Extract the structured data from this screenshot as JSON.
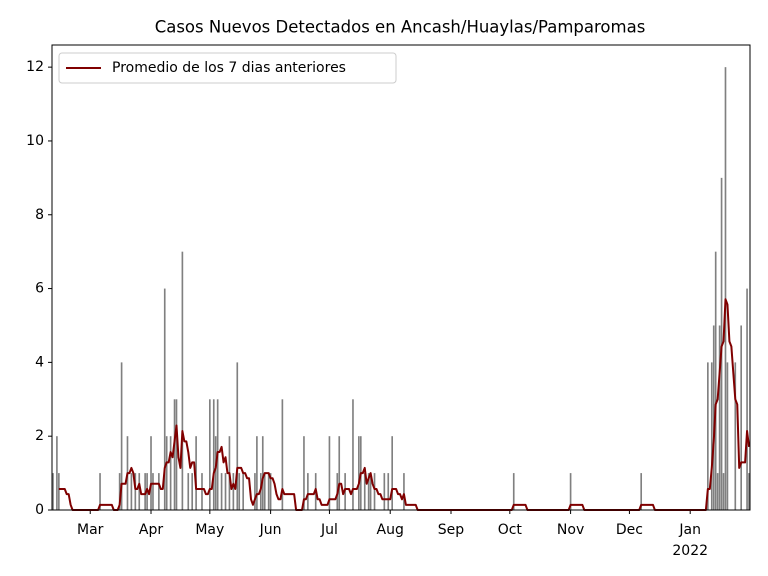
{
  "chart_data": {
    "type": "bar_line",
    "title": "Casos Nuevos Detectados en Ancash/Huaylas/Pamparomas",
    "categories": [
      null,
      null,
      null,
      null,
      null,
      null,
      null,
      null,
      null,
      null,
      null,
      null,
      null,
      null,
      null,
      null,
      null,
      null,
      null,
      "Mar",
      null,
      null,
      null,
      null,
      null,
      null,
      null,
      null,
      null,
      null,
      null,
      null,
      null,
      null,
      null,
      null,
      null,
      null,
      null,
      null,
      null,
      null,
      null,
      null,
      null,
      null,
      null,
      null,
      null,
      null,
      "Apr",
      null,
      null,
      null,
      null,
      null,
      null,
      null,
      null,
      null,
      null,
      null,
      null,
      null,
      null,
      null,
      null,
      null,
      null,
      null,
      null,
      null,
      null,
      null,
      null,
      null,
      null,
      null,
      null,
      null,
      "May",
      null,
      null,
      null,
      null,
      null,
      null,
      null,
      null,
      null,
      null,
      null,
      null,
      null,
      null,
      null,
      null,
      null,
      null,
      null,
      null,
      null,
      null,
      null,
      null,
      null,
      null,
      null,
      null,
      null,
      null,
      "Jun",
      null,
      null,
      null,
      null,
      null,
      null,
      null,
      null,
      null,
      null,
      null,
      null,
      null,
      null,
      null,
      null,
      null,
      null,
      null,
      null,
      null,
      null,
      null,
      null,
      null,
      null,
      null,
      null,
      null,
      "Jul",
      null,
      null,
      null,
      null,
      null,
      null,
      null,
      null,
      null,
      null,
      null,
      null,
      null,
      null,
      null,
      null,
      null,
      null,
      null,
      null,
      null,
      null,
      null,
      null,
      null,
      null,
      null,
      null,
      null,
      null,
      "Aug",
      null,
      null,
      null,
      null,
      null,
      null,
      null,
      null,
      null,
      null,
      null,
      null,
      null,
      null,
      null,
      null,
      null,
      null,
      null,
      null,
      null,
      null,
      null,
      null,
      null,
      null,
      null,
      null,
      null,
      null,
      "Sep",
      null,
      null,
      null,
      null,
      null,
      null,
      null,
      null,
      null,
      null,
      null,
      null,
      null,
      null,
      null,
      null,
      null,
      null,
      null,
      null,
      null,
      null,
      null,
      null,
      null,
      null,
      null,
      null,
      null,
      "Oct",
      null,
      null,
      null,
      null,
      null,
      null,
      null,
      null,
      null,
      null,
      null,
      null,
      null,
      null,
      null,
      null,
      null,
      null,
      null,
      null,
      null,
      null,
      null,
      null,
      null,
      null,
      null,
      null,
      null,
      null,
      "Nov",
      null,
      null,
      null,
      null,
      null,
      null,
      null,
      null,
      null,
      null,
      null,
      null,
      null,
      null,
      null,
      null,
      null,
      null,
      null,
      null,
      null,
      null,
      null,
      null,
      null,
      null,
      null,
      null,
      null,
      "Dec",
      null,
      null,
      null,
      null,
      null,
      null,
      null,
      null,
      null,
      null,
      null,
      null,
      null,
      null,
      null,
      null,
      null,
      null,
      null,
      null,
      null,
      null,
      null,
      null,
      null,
      null,
      null,
      null,
      null,
      null,
      "Jan",
      null,
      null,
      null,
      null,
      null,
      null,
      null,
      null,
      null,
      null,
      null,
      null,
      null,
      null,
      null,
      null,
      null,
      null,
      null,
      null,
      null,
      null,
      null,
      null,
      null,
      null,
      null,
      null,
      null,
      null
    ],
    "x_year_label": "2022",
    "series": [
      {
        "color": "#808080",
        "values": [
          1,
          0,
          2,
          1,
          0,
          0,
          0,
          0,
          0,
          0,
          0,
          0,
          0,
          0,
          0,
          0,
          0,
          0,
          0,
          0,
          0,
          0,
          0,
          0,
          1,
          0,
          0,
          0,
          0,
          0,
          0,
          0,
          0,
          0,
          1,
          4,
          0,
          0,
          2,
          0,
          1,
          0,
          1,
          0,
          1,
          0,
          0,
          1,
          1,
          0,
          2,
          1,
          0,
          0,
          1,
          0,
          0,
          6,
          2,
          0,
          2,
          0,
          3,
          3,
          0,
          0,
          7,
          0,
          0,
          1,
          0,
          1,
          0,
          2,
          0,
          0,
          1,
          0,
          0,
          0,
          3,
          0,
          3,
          2,
          3,
          0,
          1,
          0,
          1,
          0,
          2,
          0,
          1,
          0,
          4,
          1,
          0,
          1,
          0,
          0,
          0,
          0,
          0,
          1,
          2,
          0,
          1,
          2,
          1,
          0,
          1,
          1,
          0,
          0,
          0,
          0,
          0,
          3,
          0,
          0,
          0,
          0,
          0,
          0,
          0,
          0,
          0,
          0,
          2,
          0,
          1,
          0,
          0,
          0,
          1,
          0,
          0,
          0,
          0,
          0,
          0,
          2,
          0,
          0,
          0,
          1,
          2,
          0,
          0,
          1,
          0,
          0,
          0,
          3,
          0,
          0,
          2,
          2,
          0,
          1,
          0,
          1,
          1,
          0,
          1,
          0,
          0,
          0,
          0,
          1,
          0,
          1,
          0,
          2,
          0,
          0,
          0,
          0,
          0,
          1,
          0,
          0,
          0,
          0,
          0,
          0,
          0,
          0,
          0,
          0,
          0,
          0,
          0,
          0,
          0,
          0,
          0,
          0,
          0,
          0,
          0,
          0,
          0,
          0,
          0,
          0,
          0,
          0,
          0,
          0,
          0,
          0,
          0,
          0,
          0,
          0,
          0,
          0,
          0,
          0,
          0,
          0,
          0,
          0,
          0,
          0,
          0,
          0,
          0,
          0,
          0,
          0,
          0,
          0,
          0,
          1,
          0,
          0,
          0,
          0,
          0,
          0,
          0,
          0,
          0,
          0,
          0,
          0,
          0,
          0,
          0,
          0,
          0,
          0,
          0,
          0,
          0,
          0,
          0,
          0,
          0,
          0,
          0,
          0,
          1,
          0,
          0,
          0,
          0,
          0,
          0,
          0,
          0,
          0,
          0,
          0,
          0,
          0,
          0,
          0,
          0,
          0,
          0,
          0,
          0,
          0,
          0,
          0,
          0,
          0,
          0,
          0,
          0,
          0,
          0,
          0,
          0,
          0,
          0,
          0,
          1,
          0,
          0,
          0,
          0,
          0,
          0,
          0,
          0,
          0,
          0,
          0,
          0,
          0,
          0,
          0,
          0,
          0,
          0,
          0,
          0,
          0,
          0,
          0,
          0,
          0,
          0,
          0,
          0,
          0,
          0,
          0,
          0,
          0,
          4,
          0,
          4,
          5,
          7,
          1,
          5,
          9,
          1,
          12,
          4,
          0,
          0,
          0,
          4,
          0,
          0,
          5,
          0,
          0,
          6,
          1
        ]
      },
      {
        "name": "Promedio de los 7 dias anteriores",
        "color": "#800000",
        "values": [
          null,
          null,
          null,
          0.57,
          0.57,
          0.57,
          0.57,
          0.43,
          0.43,
          0.14,
          0,
          0,
          0,
          0,
          0,
          0,
          0,
          0,
          0,
          0,
          0,
          0,
          0,
          0,
          0.14,
          0.14,
          0.14,
          0.14,
          0.14,
          0.14,
          0.14,
          0,
          0,
          0,
          0.14,
          0.71,
          0.71,
          0.71,
          1,
          1,
          1.14,
          1,
          0.57,
          0.57,
          0.71,
          0.43,
          0.43,
          0.43,
          0.57,
          0.43,
          0.71,
          0.71,
          0.71,
          0.71,
          0.71,
          0.57,
          0.57,
          1.14,
          1.29,
          1.29,
          1.57,
          1.43,
          1.86,
          2.29,
          1.43,
          1.14,
          2.14,
          1.86,
          1.86,
          1.57,
          1.14,
          1.29,
          1.29,
          0.57,
          0.57,
          0.57,
          0.57,
          0.57,
          0.43,
          0.43,
          0.57,
          0.57,
          1,
          1.14,
          1.57,
          1.57,
          1.71,
          1.29,
          1.43,
          1,
          1,
          0.57,
          0.71,
          0.57,
          1.14,
          1.14,
          1.14,
          1,
          1,
          0.86,
          0.86,
          0.29,
          0.14,
          0.29,
          0.43,
          0.43,
          0.57,
          0.86,
          1,
          1,
          1,
          0.86,
          0.86,
          0.71,
          0.43,
          0.29,
          0.29,
          0.57,
          0.43,
          0.43,
          0.43,
          0.43,
          0.43,
          0.43,
          0,
          0,
          0,
          0,
          0.29,
          0.29,
          0.43,
          0.43,
          0.43,
          0.43,
          0.57,
          0.29,
          0.29,
          0.14,
          0.14,
          0.14,
          0.14,
          0.29,
          0.29,
          0.29,
          0.29,
          0.43,
          0.71,
          0.71,
          0.43,
          0.57,
          0.57,
          0.57,
          0.43,
          0.57,
          0.57,
          0.57,
          0.71,
          1,
          1,
          1.14,
          0.71,
          0.86,
          1,
          0.71,
          0.57,
          0.57,
          0.43,
          0.43,
          0.29,
          0.29,
          0.29,
          0.29,
          0.29,
          0.57,
          0.57,
          0.57,
          0.43,
          0.43,
          0.29,
          0.43,
          0.14,
          0.14,
          0.14,
          0.14,
          0.14,
          0.14,
          0,
          0,
          0,
          0,
          0,
          0,
          0,
          0,
          0,
          0,
          0,
          0,
          0,
          0,
          0,
          0,
          0,
          0,
          0,
          0,
          0,
          0,
          0,
          0,
          0,
          0,
          0,
          0,
          0,
          0,
          0,
          0,
          0,
          0,
          0,
          0,
          0,
          0,
          0,
          0,
          0,
          0,
          0,
          0,
          0,
          0,
          0,
          0,
          0,
          0.14,
          0.14,
          0.14,
          0.14,
          0.14,
          0.14,
          0.14,
          0,
          0,
          0,
          0,
          0,
          0,
          0,
          0,
          0,
          0,
          0,
          0,
          0,
          0,
          0,
          0,
          0,
          0,
          0,
          0,
          0,
          0,
          0.14,
          0.14,
          0.14,
          0.14,
          0.14,
          0.14,
          0.14,
          0,
          0,
          0,
          0,
          0,
          0,
          0,
          0,
          0,
          0,
          0,
          0,
          0,
          0,
          0,
          0,
          0,
          0,
          0,
          0,
          0,
          0,
          0,
          0,
          0,
          0,
          0,
          0,
          0,
          0.14,
          0.14,
          0.14,
          0.14,
          0.14,
          0.14,
          0.14,
          0,
          0,
          0,
          0,
          0,
          0,
          0,
          0,
          0,
          0,
          0,
          0,
          0,
          0,
          0,
          0,
          0,
          0,
          0,
          0,
          0,
          0,
          0,
          0,
          0,
          0,
          0,
          0.57,
          0.57,
          1.14,
          1.86,
          2.86,
          3,
          3.71,
          4.43,
          4.57,
          5.71,
          5.57,
          4.57,
          4.43,
          3.71,
          3,
          2.86,
          1.14,
          1.29,
          1.29,
          1.29,
          2.14,
          1.71
        ]
      }
    ],
    "ylim": [
      0,
      12.6
    ],
    "yticks": [
      0,
      2,
      4,
      6,
      8,
      10,
      12
    ],
    "legend": "upper left"
  }
}
